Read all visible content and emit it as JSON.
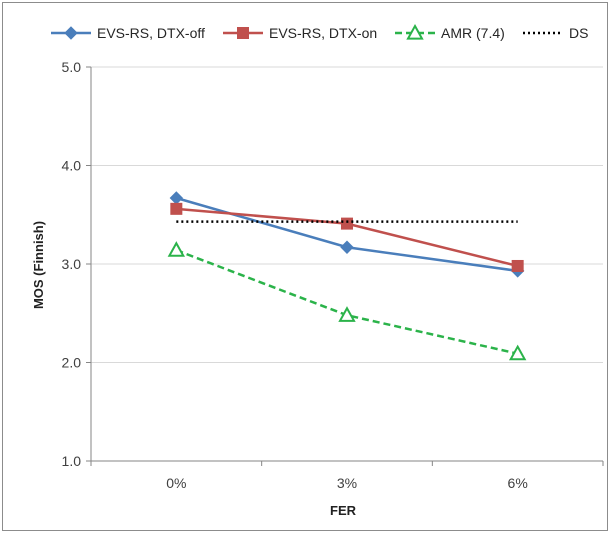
{
  "chart_data": {
    "type": "line",
    "title": "",
    "xlabel": "FER",
    "ylabel": "MOS (Finnish)",
    "categories": [
      "0%",
      "3%",
      "6%"
    ],
    "ylim": [
      1.0,
      5.0
    ],
    "yticks": [
      "1.0",
      "2.0",
      "3.0",
      "4.0",
      "5.0"
    ],
    "grid": "horizontal",
    "legend_position": "top",
    "series": [
      {
        "name": "EVS-RS, DTX-off",
        "values": [
          3.67,
          3.17,
          2.93
        ],
        "color": "#4a7ebb",
        "marker": "diamond",
        "line": "solid"
      },
      {
        "name": "EVS-RS, DTX-on",
        "values": [
          3.56,
          3.41,
          2.98
        ],
        "color": "#c0504d",
        "marker": "square",
        "line": "solid"
      },
      {
        "name": "AMR (7.4)",
        "values": [
          3.14,
          2.48,
          2.09
        ],
        "color": "#2bb34a",
        "marker": "triangle-open",
        "line": "dashed"
      },
      {
        "name": "DS",
        "values": [
          3.43,
          3.43,
          3.43
        ],
        "color": "#000000",
        "marker": "none",
        "line": "dotted"
      }
    ]
  }
}
